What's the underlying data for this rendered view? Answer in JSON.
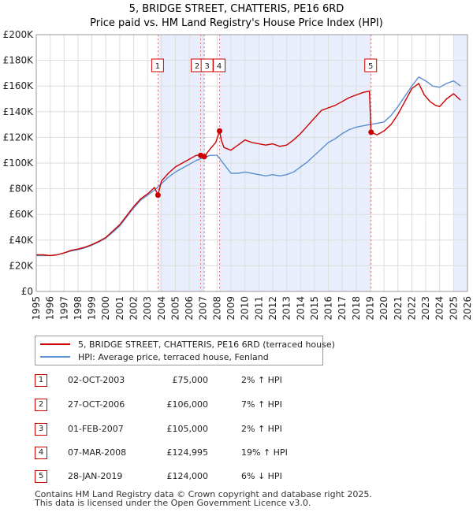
{
  "chart_data": {
    "type": "line",
    "title": "5, BRIDGE STREET, CHATTERIS, PE16 6RD",
    "subtitle": "Price paid vs. HM Land Registry's House Price Index (HPI)",
    "xlim": [
      1995,
      2026
    ],
    "ylim": [
      0,
      200000
    ],
    "x_ticks": [
      "1995",
      "1996",
      "1997",
      "1998",
      "1999",
      "2000",
      "2001",
      "2002",
      "2003",
      "2004",
      "2005",
      "2006",
      "2007",
      "2008",
      "2009",
      "2010",
      "2011",
      "2012",
      "2013",
      "2014",
      "2015",
      "2016",
      "2017",
      "2018",
      "2019",
      "2020",
      "2021",
      "2022",
      "2023",
      "2024",
      "2025",
      "2026"
    ],
    "y_ticks": [
      {
        "value": 0,
        "label": "£0"
      },
      {
        "value": 20000,
        "label": "£20K"
      },
      {
        "value": 40000,
        "label": "£40K"
      },
      {
        "value": 60000,
        "label": "£60K"
      },
      {
        "value": 80000,
        "label": "£80K"
      },
      {
        "value": 100000,
        "label": "£100K"
      },
      {
        "value": 120000,
        "label": "£120K"
      },
      {
        "value": 140000,
        "label": "£140K"
      },
      {
        "value": 160000,
        "label": "£160K"
      },
      {
        "value": 180000,
        "label": "£180K"
      },
      {
        "value": 200000,
        "label": "£200K"
      }
    ],
    "grid": true,
    "shaded_spans": [
      [
        2003.75,
        2007.09
      ],
      [
        2008.18,
        2019.07
      ],
      [
        2025.0,
        2026.0
      ]
    ],
    "series": [
      {
        "name": "5, BRIDGE STREET, CHATTERIS, PE16 6RD (terraced house)",
        "color": "#cc0000",
        "x": [
          1995,
          1995.5,
          1996,
          1996.5,
          1997,
          1997.5,
          1998,
          1998.5,
          1999,
          1999.5,
          2000,
          2000.5,
          2001,
          2001.5,
          2002,
          2002.5,
          2003,
          2003.5,
          2003.75,
          2004,
          2004.5,
          2005,
          2005.5,
          2006,
          2006.5,
          2006.82,
          2007.08,
          2007.5,
          2007.9,
          2008.18,
          2008.3,
          2008.5,
          2009,
          2009.5,
          2010,
          2010.5,
          2011,
          2011.5,
          2012,
          2012.5,
          2013,
          2013.5,
          2014,
          2014.5,
          2015,
          2015.5,
          2016,
          2016.5,
          2017,
          2017.5,
          2018,
          2018.5,
          2018.95,
          2019.07,
          2019.5,
          2020,
          2020.5,
          2021,
          2021.5,
          2022,
          2022.5,
          2022.9,
          2023.3,
          2023.7,
          2024,
          2024.5,
          2025,
          2025.5
        ],
        "values": [
          28500,
          28500,
          28000,
          28500,
          30000,
          32000,
          33000,
          34500,
          36500,
          39000,
          42000,
          47000,
          52000,
          59000,
          66000,
          72000,
          76000,
          81000,
          75000,
          86000,
          92000,
          97000,
          100000,
          103000,
          106000,
          106000,
          105000,
          111000,
          116000,
          124995,
          118000,
          112000,
          110000,
          114000,
          118000,
          116000,
          115000,
          114000,
          115000,
          113000,
          114000,
          118000,
          123000,
          129000,
          135000,
          141000,
          143000,
          145000,
          148000,
          151000,
          153000,
          155000,
          156000,
          124000,
          122000,
          125000,
          130000,
          138000,
          148000,
          158000,
          162000,
          153000,
          148000,
          145000,
          144000,
          150000,
          154000,
          149000
        ]
      },
      {
        "name": "HPI: Average price, terraced house, Fenland",
        "color": "#5b8fd0",
        "x": [
          1995,
          1995.5,
          1996,
          1996.5,
          1997,
          1997.5,
          1998,
          1998.5,
          1999,
          1999.5,
          2000,
          2000.5,
          2001,
          2001.5,
          2002,
          2002.5,
          2003,
          2003.5,
          2004,
          2004.5,
          2005,
          2005.5,
          2006,
          2006.5,
          2007,
          2007.5,
          2008,
          2008.5,
          2009,
          2009.5,
          2010,
          2010.5,
          2011,
          2011.5,
          2012,
          2012.5,
          2013,
          2013.5,
          2014,
          2014.5,
          2015,
          2015.5,
          2016,
          2016.5,
          2017,
          2017.5,
          2018,
          2018.5,
          2019,
          2019.5,
          2020,
          2020.5,
          2021,
          2021.5,
          2022,
          2022.5,
          2023,
          2023.5,
          2024,
          2024.5,
          2025,
          2025.5
        ],
        "values": [
          28000,
          28000,
          28000,
          28500,
          30000,
          31500,
          32500,
          34000,
          36000,
          38500,
          41500,
          46000,
          51000,
          58000,
          65000,
          71000,
          75000,
          79000,
          84000,
          89000,
          93000,
          96000,
          99000,
          102000,
          104000,
          106000,
          106000,
          99000,
          92000,
          92000,
          93000,
          92000,
          91000,
          90000,
          91000,
          90000,
          91000,
          93000,
          97000,
          101000,
          106000,
          111000,
          116000,
          119000,
          123000,
          126000,
          128000,
          129000,
          130000,
          131000,
          132000,
          137000,
          144000,
          152000,
          160000,
          167000,
          164000,
          160000,
          159000,
          162000,
          164000,
          160000
        ]
      }
    ],
    "sales": [
      {
        "label": "1",
        "x": 2003.75,
        "value": 75000
      },
      {
        "label": "2",
        "x": 2006.82,
        "value": 106000
      },
      {
        "label": "3",
        "x": 2007.08,
        "value": 105000
      },
      {
        "label": "4",
        "x": 2008.18,
        "value": 124995
      },
      {
        "label": "5",
        "x": 2019.07,
        "value": 124000
      }
    ]
  },
  "legend": {
    "items": [
      {
        "label": "5, BRIDGE STREET, CHATTERIS, PE16 6RD (terraced house)",
        "color": "#cc0000"
      },
      {
        "label": "HPI: Average price, terraced house, Fenland",
        "color": "#5b8fd0"
      }
    ]
  },
  "transactions": [
    {
      "num": "1",
      "date": "02-OCT-2003",
      "price": "£75,000",
      "hpi": "2% ↑ HPI"
    },
    {
      "num": "2",
      "date": "27-OCT-2006",
      "price": "£106,000",
      "hpi": "7% ↑ HPI"
    },
    {
      "num": "3",
      "date": "01-FEB-2007",
      "price": "£105,000",
      "hpi": "2% ↑ HPI"
    },
    {
      "num": "4",
      "date": "07-MAR-2008",
      "price": "£124,995",
      "hpi": "19% ↑ HPI"
    },
    {
      "num": "5",
      "date": "28-JAN-2019",
      "price": "£124,000",
      "hpi": "6% ↓ HPI"
    }
  ],
  "footer": {
    "line1": "Contains HM Land Registry data © Crown copyright and database right 2025.",
    "line2": "This data is licensed under the Open Government Licence v3.0."
  }
}
